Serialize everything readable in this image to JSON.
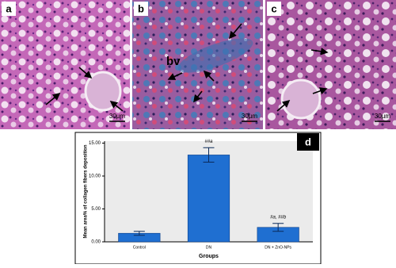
{
  "panels": [
    {
      "label": "a",
      "scale_bar": "30µm"
    },
    {
      "label": "b",
      "scale_bar": "30µm",
      "annotation": "bv"
    },
    {
      "label": "c",
      "scale_bar": "30µm"
    }
  ],
  "chart_data": {
    "type": "bar",
    "label": "d",
    "y_label": "Mean area% of collagen fibers deposition",
    "x_label": "Groups",
    "categories": [
      "Control",
      "DN",
      "DN + ZnO-NPs"
    ],
    "values": [
      1.3,
      13.2,
      2.2
    ],
    "errors": [
      0.3,
      1.1,
      0.6
    ],
    "annotations": [
      null,
      "##a",
      "#a, ##b"
    ],
    "color": "#1f6fd1",
    "ylim": [
      0,
      15.3
    ],
    "yticks": [
      {
        "value": 0,
        "label": "0.00"
      },
      {
        "value": 5,
        "label": "5.00"
      },
      {
        "value": 10,
        "label": "10.00"
      },
      {
        "value": 15,
        "label": "15.00"
      }
    ]
  }
}
